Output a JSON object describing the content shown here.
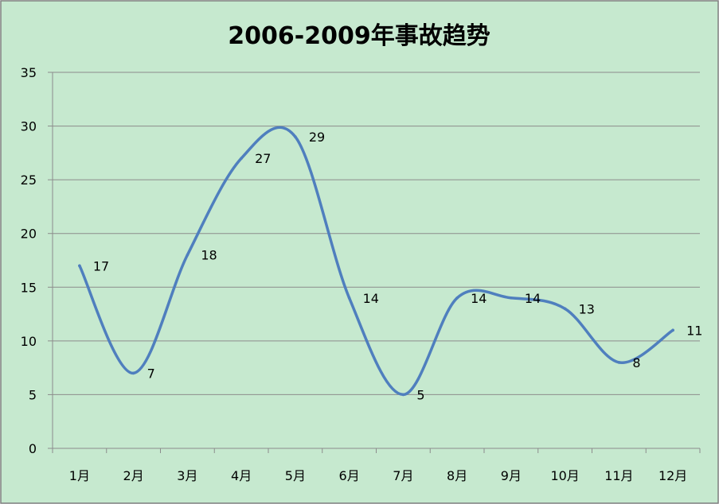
{
  "chart_data": {
    "type": "line",
    "title": "2006-2009年事故趋势",
    "categories": [
      "1月",
      "2月",
      "3月",
      "4月",
      "5月",
      "6月",
      "7月",
      "8月",
      "9月",
      "10月",
      "11月",
      "12月"
    ],
    "series": [
      {
        "values": [
          17,
          7,
          18,
          27,
          29,
          14,
          5,
          14,
          14,
          13,
          8,
          11
        ]
      }
    ],
    "ylim": [
      0,
      35
    ],
    "yticks": [
      0,
      5,
      10,
      15,
      20,
      25,
      30,
      35
    ],
    "smooth": true,
    "grid": true,
    "data_labels": true,
    "legend": "none",
    "colors": {
      "background": "#c6e9cf",
      "line": "#4f7fbe",
      "grid": "#8c8c8c",
      "border": "#7f7f7f"
    }
  }
}
